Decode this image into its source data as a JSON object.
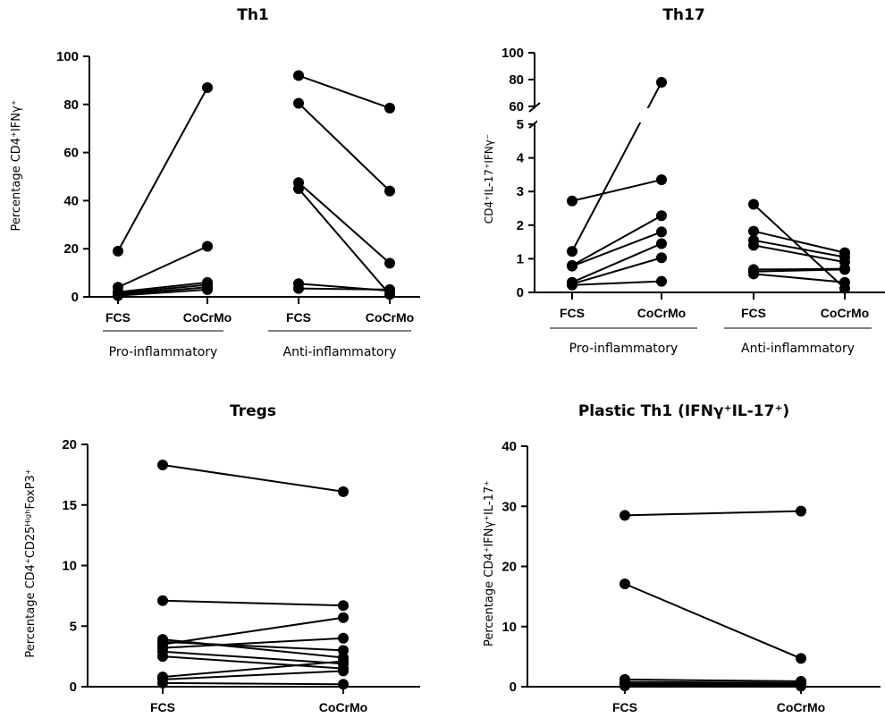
{
  "chart_data": [
    {
      "id": "th1",
      "type": "line",
      "title": "Th1",
      "ylabel": "Percentage CD4⁺IFNγ⁺",
      "ylim": [
        0,
        100
      ],
      "yticks": [
        "0",
        "20",
        "40",
        "60",
        "80",
        "100"
      ],
      "categories": [
        "FCS",
        "CoCrMo",
        "FCS",
        "CoCrMo"
      ],
      "groups": [
        "Pro-inflammatory",
        "Anti-inflammatory"
      ],
      "pairs": [
        {
          "group": 0,
          "values": [
            19,
            87
          ]
        },
        {
          "group": 0,
          "values": [
            4,
            21
          ]
        },
        {
          "group": 0,
          "values": [
            2,
            6
          ]
        },
        {
          "group": 0,
          "values": [
            1.5,
            5
          ]
        },
        {
          "group": 0,
          "values": [
            1,
            4
          ]
        },
        {
          "group": 0,
          "values": [
            0.5,
            3
          ]
        },
        {
          "group": 1,
          "values": [
            92,
            78.5
          ]
        },
        {
          "group": 1,
          "values": [
            80.5,
            44
          ]
        },
        {
          "group": 1,
          "values": [
            47.5,
            14
          ]
        },
        {
          "group": 1,
          "values": [
            45,
            1
          ]
        },
        {
          "group": 1,
          "values": [
            5.5,
            2.5
          ]
        },
        {
          "group": 1,
          "values": [
            3.5,
            3
          ]
        }
      ]
    },
    {
      "id": "th17",
      "type": "line",
      "title": "Th17",
      "ylabel": "CD4⁺IL-17⁺IFNγ⁻",
      "ylim": [
        0,
        100
      ],
      "axis_break": {
        "lower": [
          0,
          5
        ],
        "upper": [
          60,
          100
        ]
      },
      "yticks_lower": [
        "0",
        "1",
        "2",
        "3",
        "4",
        "5"
      ],
      "yticks_upper": [
        "60",
        "80",
        "100"
      ],
      "categories": [
        "FCS",
        "CoCrMo",
        "FCS",
        "CoCrMo"
      ],
      "groups": [
        "Pro-inflammatory",
        "Anti-inflammatory"
      ],
      "pairs": [
        {
          "group": 0,
          "values": [
            1.22,
            78
          ]
        },
        {
          "group": 0,
          "values": [
            2.72,
            3.35
          ]
        },
        {
          "group": 0,
          "values": [
            0.8,
            2.28
          ]
        },
        {
          "group": 0,
          "values": [
            0.78,
            1.8
          ]
        },
        {
          "group": 0,
          "values": [
            0.3,
            1.45
          ]
        },
        {
          "group": 0,
          "values": [
            0.25,
            1.03
          ]
        },
        {
          "group": 0,
          "values": [
            0.22,
            0.33
          ]
        },
        {
          "group": 1,
          "values": [
            2.62,
            0.12
          ]
        },
        {
          "group": 1,
          "values": [
            1.82,
            1.18
          ]
        },
        {
          "group": 1,
          "values": [
            1.55,
            1.05
          ]
        },
        {
          "group": 1,
          "values": [
            1.4,
            0.9
          ]
        },
        {
          "group": 1,
          "values": [
            0.68,
            0.7
          ]
        },
        {
          "group": 1,
          "values": [
            0.62,
            0.68
          ]
        },
        {
          "group": 1,
          "values": [
            0.55,
            0.3
          ]
        }
      ]
    },
    {
      "id": "tregs",
      "type": "line",
      "title": "Tregs",
      "ylabel": "Percentage CD4⁺CD25ᴴⁱᵍʰFoxP3⁺",
      "ylim": [
        0,
        20
      ],
      "yticks": [
        "0",
        "5",
        "10",
        "15",
        "20"
      ],
      "categories": [
        "FCS",
        "CoCrMo"
      ],
      "pairs": [
        {
          "values": [
            18.3,
            16.1
          ]
        },
        {
          "values": [
            7.1,
            6.7
          ]
        },
        {
          "values": [
            3.9,
            2.4
          ]
        },
        {
          "values": [
            3.7,
            3.0
          ]
        },
        {
          "values": [
            3.5,
            5.7
          ]
        },
        {
          "values": [
            3.2,
            4.0
          ]
        },
        {
          "values": [
            2.9,
            1.9
          ]
        },
        {
          "values": [
            2.5,
            1.5
          ]
        },
        {
          "values": [
            0.8,
            2.1
          ]
        },
        {
          "values": [
            0.6,
            1.3
          ]
        },
        {
          "values": [
            0.3,
            0.2
          ]
        }
      ]
    },
    {
      "id": "plastic",
      "type": "line",
      "title": "Plastic Th1 (IFNγ⁺IL-17⁺)",
      "ylabel": "Percentage CD4⁺IFNγ⁺IL-17⁺",
      "ylim": [
        0,
        40
      ],
      "yticks": [
        "0",
        "10",
        "20",
        "30",
        "40"
      ],
      "categories": [
        "FCS",
        "CoCrMo"
      ],
      "pairs": [
        {
          "values": [
            28.5,
            29.2
          ]
        },
        {
          "values": [
            17.1,
            4.7
          ]
        },
        {
          "values": [
            1.2,
            0.9
          ]
        },
        {
          "values": [
            0.8,
            0.6
          ]
        },
        {
          "values": [
            0.5,
            0.4
          ]
        },
        {
          "values": [
            0.3,
            0.2
          ]
        },
        {
          "values": [
            0.15,
            0.1
          ]
        }
      ]
    }
  ]
}
